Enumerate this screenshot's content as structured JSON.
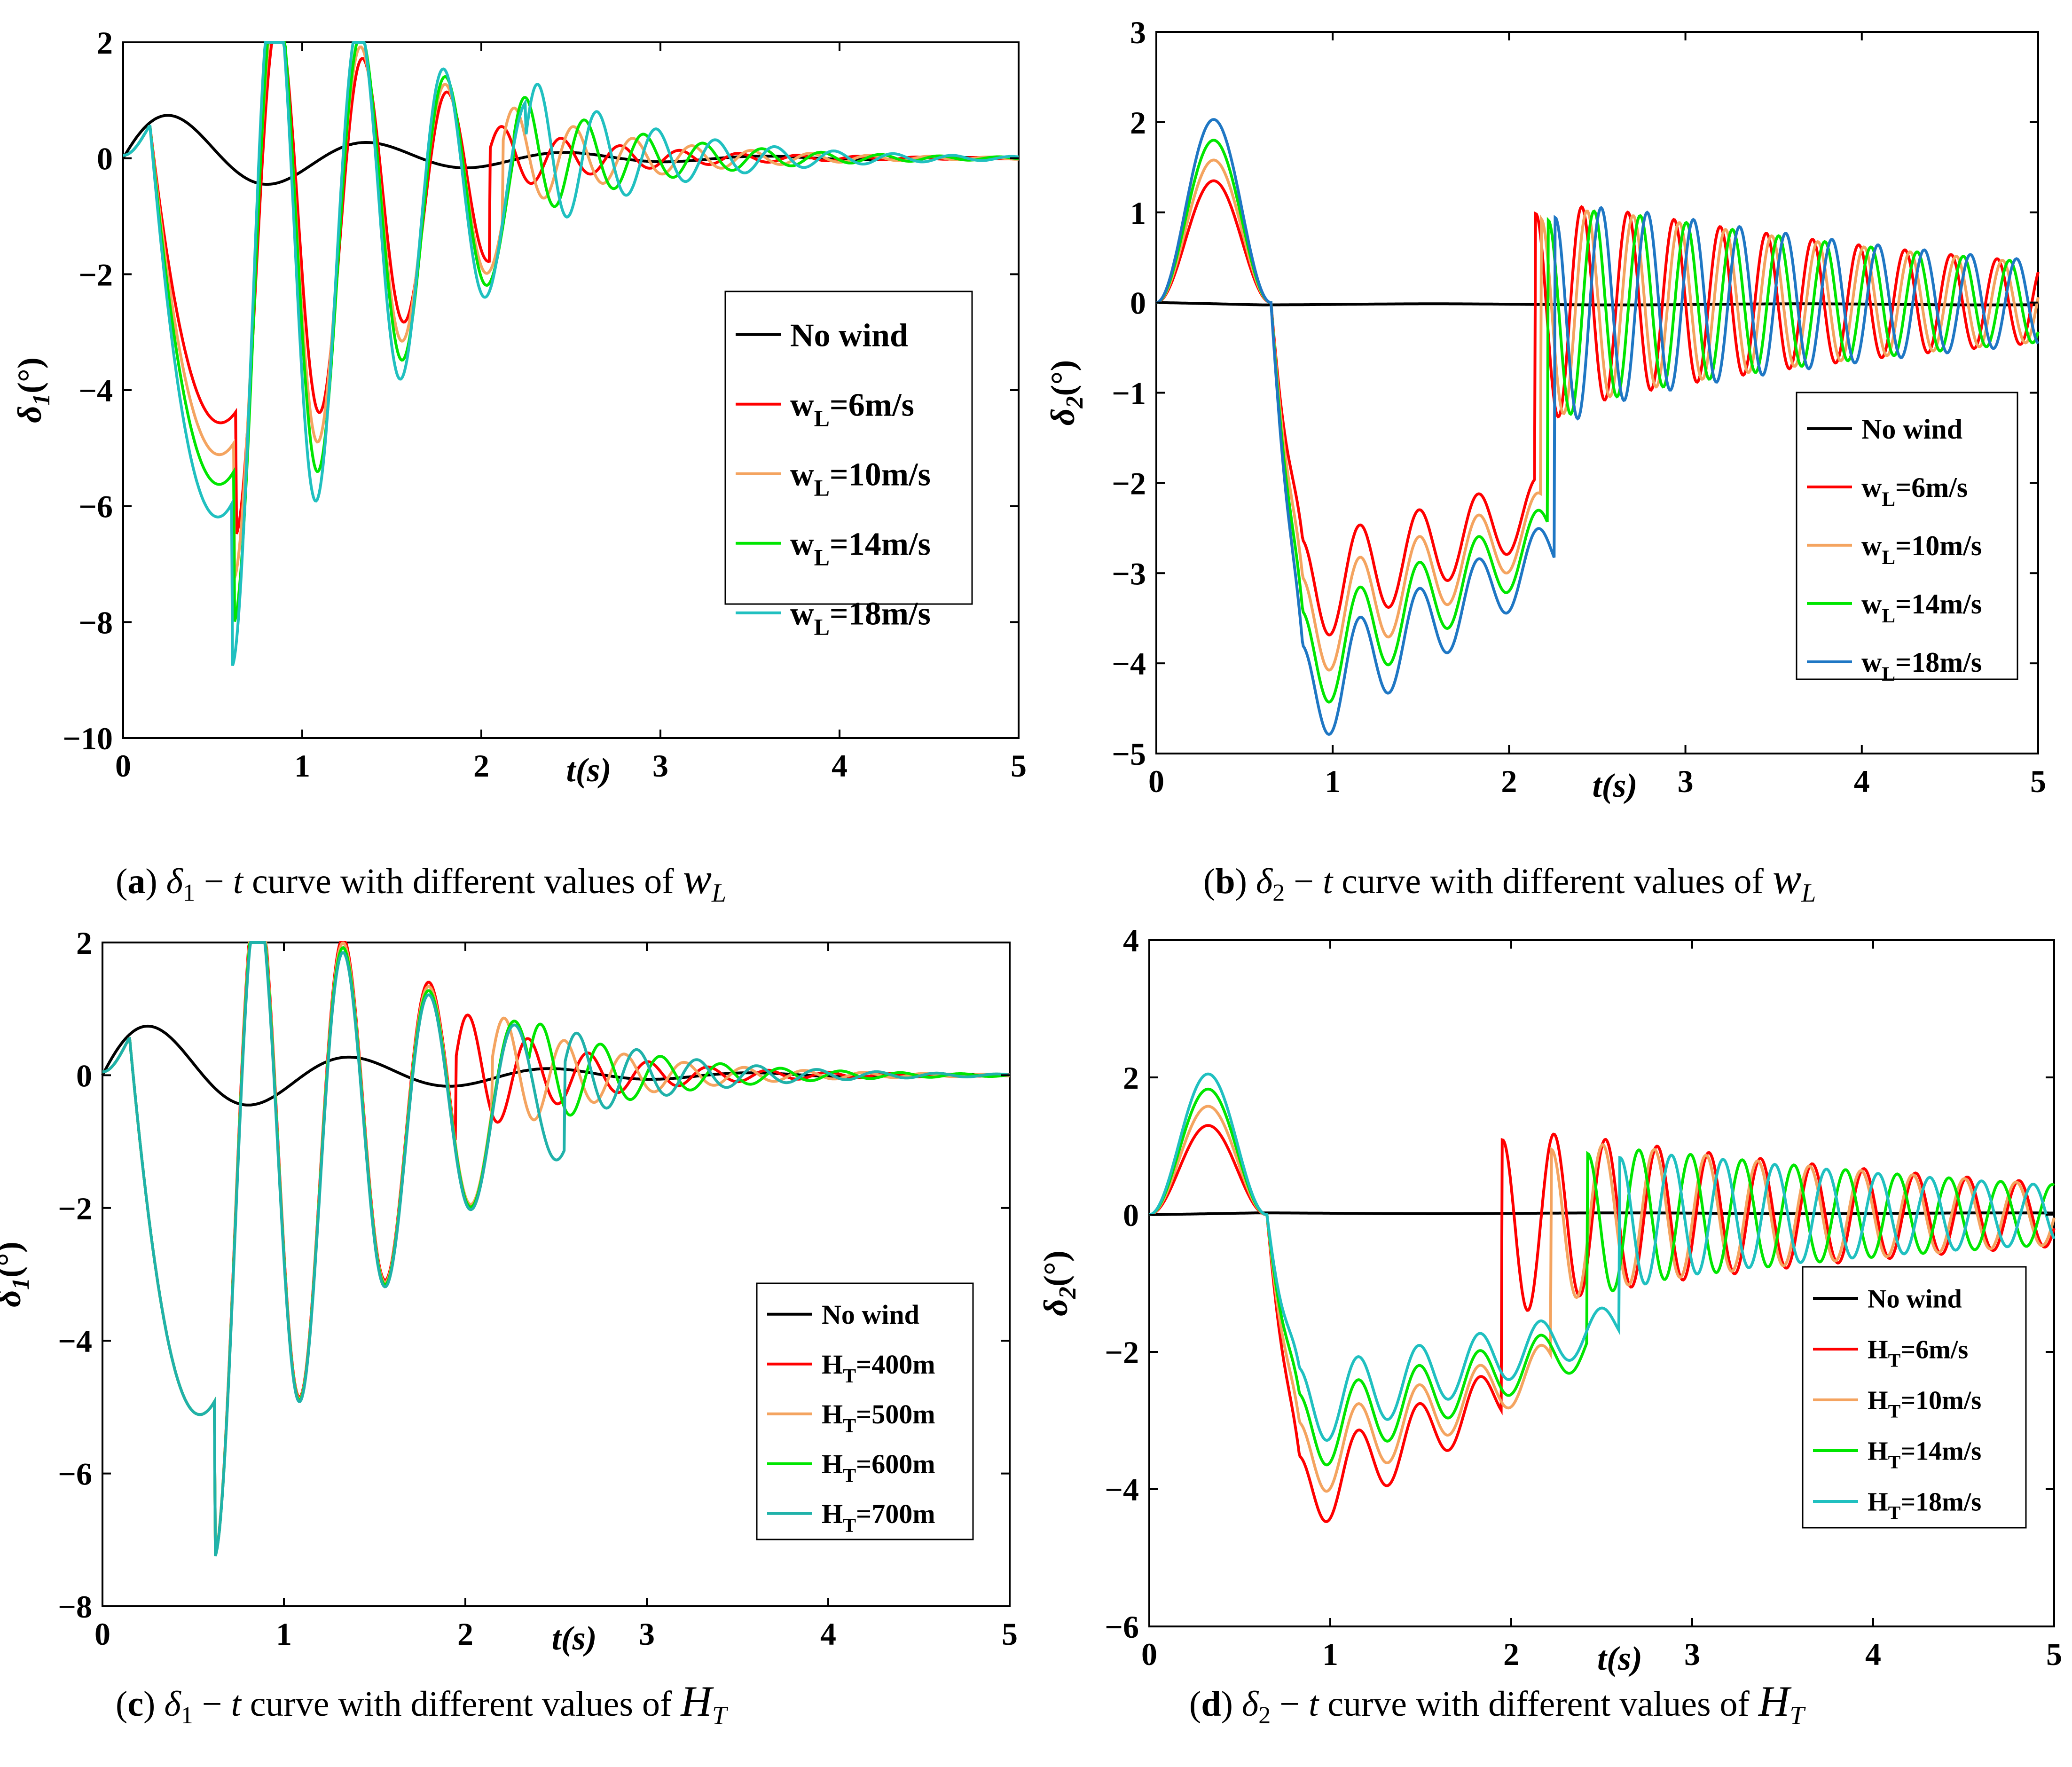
{
  "chart_data": [
    {
      "type": "line",
      "id": "a",
      "xlabel": "t(s)",
      "ylabel": "δ",
      "ylabel_sub": "1",
      "ylabel_unit": "(°)",
      "xlim": [
        0,
        5
      ],
      "ylim": [
        -10,
        2
      ],
      "xticks": [
        0,
        1,
        2,
        3,
        4,
        5
      ],
      "yticks": [
        -10,
        -8,
        -6,
        -4,
        -2,
        0,
        2
      ],
      "ytick_labels": [
        "−10",
        "−8",
        "−6",
        "−4",
        "−2",
        "0",
        "2"
      ],
      "grid": false,
      "legend_position": "middle-right",
      "caption": {
        "tag": "a",
        "sym": "δ",
        "sub": "1",
        "mid": " − ",
        "t": "t",
        "text": "   curve with different values of  ",
        "param": "w",
        "param_sub": "L"
      },
      "series": [
        {
          "name": "No wind",
          "legend": {
            "main": "No wind",
            "sub": "",
            "rest": ""
          },
          "color": "#000000",
          "model": {
            "type": "nowind",
            "amp": 0.75,
            "omega": 6.3,
            "damp": 0.9
          }
        },
        {
          "name": "wL=6m/s",
          "legend": {
            "main": "w",
            "sub": "L",
            "rest": "=6m/s"
          },
          "color": "#ff0000",
          "model": {
            "type": "wind",
            "peak": -6.9,
            "t_peak": 0.63,
            "omega": 13.3,
            "damp": 1.05,
            "start": 0.62,
            "switch": 2.05,
            "amp2": 0.6,
            "damp2": 1.4,
            "omega2": 19
          }
        },
        {
          "name": "wL=10m/s",
          "legend": {
            "main": "w",
            "sub": "L",
            "rest": "=10m/s"
          },
          "color": "#f4a460",
          "model": {
            "type": "wind",
            "peak": -7.7,
            "t_peak": 0.62,
            "omega": 13.3,
            "damp": 1.05,
            "start": 0.6,
            "switch": 2.12,
            "amp2": 0.95,
            "damp2": 1.4,
            "omega2": 19
          }
        },
        {
          "name": "wL=14m/s",
          "legend": {
            "main": "w",
            "sub": "L",
            "rest": "=14m/s"
          },
          "color": "#00e600",
          "model": {
            "type": "wind",
            "peak": -8.5,
            "t_peak": 0.62,
            "omega": 13.3,
            "damp": 1.05,
            "start": 0.6,
            "switch": 2.18,
            "amp2": 1.15,
            "damp2": 1.4,
            "omega2": 19
          }
        },
        {
          "name": "wL=18m/s",
          "legend": {
            "main": "w",
            "sub": "L",
            "rest": "=18m/s"
          },
          "color": "#20c0c0",
          "model": {
            "type": "wind",
            "peak": -9.3,
            "t_peak": 0.61,
            "omega": 13.3,
            "damp": 1.05,
            "start": 0.6,
            "switch": 2.25,
            "amp2": 1.4,
            "damp2": 1.4,
            "omega2": 19
          }
        }
      ]
    },
    {
      "type": "line",
      "id": "b",
      "xlabel": "t(s)",
      "ylabel": "δ",
      "ylabel_sub": "2",
      "ylabel_unit": "(°)",
      "xlim": [
        0,
        5
      ],
      "ylim": [
        -5,
        3
      ],
      "xticks": [
        0,
        1,
        2,
        3,
        4,
        5
      ],
      "yticks": [
        -5,
        -4,
        -3,
        -2,
        -1,
        0,
        1,
        2,
        3
      ],
      "ytick_labels": [
        "−5",
        "−4",
        "−3",
        "−2",
        "−1",
        "0",
        "1",
        "2",
        "3"
      ],
      "grid": false,
      "legend_position": "middle-right",
      "caption": {
        "tag": "b",
        "sym": "δ",
        "sub": "2",
        "mid": " − ",
        "t": "t",
        "text": "   curve with different values of  ",
        "param": "w",
        "param_sub": "L"
      },
      "series": [
        {
          "name": "No wind",
          "legend": {
            "main": "No wind",
            "sub": "",
            "rest": ""
          },
          "color": "#000000",
          "model": {
            "type": "flat",
            "val": -0.02
          }
        },
        {
          "name": "wL=6m/s",
          "legend": {
            "main": "w",
            "sub": "L",
            "rest": "=6m/s"
          },
          "color": "#ff0000",
          "model": {
            "type": "wind2",
            "hump": 1.35,
            "low": -3.35,
            "base": -2.3,
            "switch": 2.15,
            "amp2": 1.35,
            "omega2": 24
          }
        },
        {
          "name": "wL=10m/s",
          "legend": {
            "main": "w",
            "sub": "L",
            "rest": "=10m/s"
          },
          "color": "#f4a460",
          "model": {
            "type": "wind2",
            "hump": 1.58,
            "low": -3.8,
            "base": -2.45,
            "switch": 2.18,
            "amp2": 1.3,
            "omega2": 24
          }
        },
        {
          "name": "wL=14m/s",
          "legend": {
            "main": "w",
            "sub": "L",
            "rest": "=14m/s"
          },
          "color": "#00e600",
          "model": {
            "type": "wind2",
            "hump": 1.8,
            "low": -4.2,
            "base": -2.6,
            "switch": 2.22,
            "amp2": 1.3,
            "omega2": 24
          }
        },
        {
          "name": "wL=18m/s",
          "legend": {
            "main": "w",
            "sub": "L",
            "rest": "=18m/s"
          },
          "color": "#1f77c4",
          "model": {
            "type": "wind2",
            "hump": 2.03,
            "low": -4.6,
            "base": -2.75,
            "switch": 2.26,
            "amp2": 1.35,
            "omega2": 24
          }
        }
      ]
    },
    {
      "type": "line",
      "id": "c",
      "xlabel": "t(s)",
      "ylabel": "δ",
      "ylabel_sub": "1",
      "ylabel_unit": "(°)",
      "xlim": [
        0,
        5
      ],
      "ylim": [
        -8,
        2
      ],
      "xticks": [
        0,
        1,
        2,
        3,
        4,
        5
      ],
      "yticks": [
        -8,
        -6,
        -4,
        -2,
        0,
        2
      ],
      "ytick_labels": [
        "−8",
        "−6",
        "−4",
        "−2",
        "0",
        "2"
      ],
      "grid": false,
      "legend_position": "bottom-right",
      "caption": {
        "tag": "c",
        "sym": "δ",
        "sub": "1",
        "mid": " − ",
        "t": "t",
        "text": "  curve with different values of  ",
        "param": "H",
        "param_sub": "T"
      },
      "series": [
        {
          "name": "No wind",
          "legend": {
            "main": "No wind",
            "sub": "",
            "rest": ""
          },
          "color": "#000000",
          "model": {
            "type": "nowind",
            "amp": 0.75,
            "omega": 6.3,
            "damp": 0.9
          }
        },
        {
          "name": "HT=400m",
          "legend": {
            "main": "H",
            "sub": "T",
            "rest": "=400m"
          },
          "color": "#ff0000",
          "model": {
            "type": "windc",
            "peak": -7.7,
            "t_peak": 0.62,
            "omega": 13.3,
            "damp": 1.05,
            "start": 0.6,
            "switch": 1.95,
            "amp2": 1.0,
            "damp2": 1.5,
            "omega2": 19,
            "tweak": 0.1
          }
        },
        {
          "name": "HT=500m",
          "legend": {
            "main": "H",
            "sub": "T",
            "rest": "=500m"
          },
          "color": "#f4a460",
          "model": {
            "type": "windc",
            "peak": -7.7,
            "t_peak": 0.62,
            "omega": 13.3,
            "damp": 1.05,
            "start": 0.6,
            "switch": 2.15,
            "amp2": 0.95,
            "damp2": 1.5,
            "omega2": 19,
            "tweak": 0.05
          }
        },
        {
          "name": "HT=600m",
          "legend": {
            "main": "H",
            "sub": "T",
            "rest": "=600m"
          },
          "color": "#00e600",
          "model": {
            "type": "windc",
            "peak": -7.7,
            "t_peak": 0.62,
            "omega": 13.3,
            "damp": 1.05,
            "start": 0.6,
            "switch": 2.35,
            "amp2": 0.85,
            "damp2": 1.5,
            "omega2": 19,
            "tweak": 0.0
          }
        },
        {
          "name": "HT=700m",
          "legend": {
            "main": "H",
            "sub": "T",
            "rest": "=700m"
          },
          "color": "#20b2aa",
          "model": {
            "type": "windc",
            "peak": -7.7,
            "t_peak": 0.62,
            "omega": 13.3,
            "damp": 1.05,
            "start": 0.6,
            "switch": 2.55,
            "amp2": 0.7,
            "damp2": 1.5,
            "omega2": 19,
            "tweak": -0.05
          }
        }
      ]
    },
    {
      "type": "line",
      "id": "d",
      "xlabel": "t(s)",
      "ylabel": "δ",
      "ylabel_sub": "2",
      "ylabel_unit": "(°)",
      "xlim": [
        0,
        5
      ],
      "ylim": [
        -6,
        4
      ],
      "xticks": [
        0,
        1,
        2,
        3,
        4,
        5
      ],
      "yticks": [
        -6,
        -4,
        -2,
        0,
        2,
        4
      ],
      "ytick_labels": [
        "−6",
        "−4",
        "−2",
        "0",
        "2",
        "4"
      ],
      "grid": false,
      "legend_position": "bottom-right",
      "caption": {
        "tag": "d",
        "sym": "δ",
        "sub": "2",
        "mid": " − ",
        "t": "t",
        "text": "  curve with different values of  ",
        "param": "H",
        "param_sub": "T"
      },
      "series": [
        {
          "name": "No wind",
          "legend": {
            "main": "No wind",
            "sub": "",
            "rest": ""
          },
          "color": "#000000",
          "model": {
            "type": "flat",
            "val": 0.02
          }
        },
        {
          "name": "HT=6m/s",
          "legend": {
            "main": "H",
            "sub": "T",
            "rest": "=6m/s"
          },
          "color": "#ff0000",
          "model": {
            "type": "wind2",
            "hump": 1.3,
            "low": -4.35,
            "base": -2.6,
            "switch": 1.95,
            "amp2": 1.5,
            "omega2": 22
          }
        },
        {
          "name": "HT=10m/s",
          "legend": {
            "main": "H",
            "sub": "T",
            "rest": "=10m/s"
          },
          "color": "#f4a460",
          "model": {
            "type": "wind2",
            "hump": 1.58,
            "low": -3.8,
            "base": -2.2,
            "switch": 2.22,
            "amp2": 1.3,
            "omega2": 22
          }
        },
        {
          "name": "HT=14m/s",
          "legend": {
            "main": "H",
            "sub": "T",
            "rest": "=14m/s"
          },
          "color": "#00e600",
          "model": {
            "type": "wind2",
            "hump": 1.83,
            "low": -3.35,
            "base": -1.9,
            "switch": 2.42,
            "amp2": 1.2,
            "omega2": 22
          }
        },
        {
          "name": "HT=18m/s",
          "legend": {
            "main": "H",
            "sub": "T",
            "rest": "=18m/s"
          },
          "color": "#20c0c0",
          "model": {
            "type": "wind2",
            "hump": 2.05,
            "low": -2.95,
            "base": -1.6,
            "switch": 2.6,
            "amp2": 1.1,
            "omega2": 22
          }
        }
      ]
    }
  ]
}
